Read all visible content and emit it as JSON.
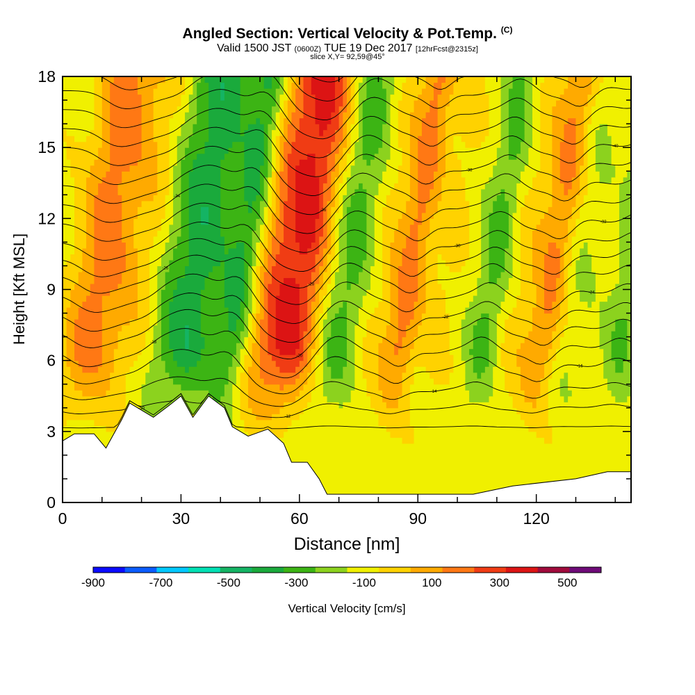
{
  "title": {
    "main": "Angled Section: Vertical Velocity & Pot.Temp.",
    "units": "(C)",
    "valid_prefix": "Valid 1500 JST",
    "valid_z": "(0600Z)",
    "valid_date": "TUE 19 Dec 2017",
    "fcst": "[12hrFcst@2315z]",
    "slice": "slice X,Y= 92,59@45°"
  },
  "chart_data": {
    "type": "heatmap",
    "title": "Angled Section: Vertical Velocity & Pot.Temp.",
    "xlabel": "Distance [nm]",
    "ylabel": "Height [Kft MSL]",
    "xlim": [
      0,
      144
    ],
    "ylim": [
      0,
      18
    ],
    "x_ticks": [
      "0",
      "30",
      "60",
      "90",
      "120"
    ],
    "x_tick_values": [
      0,
      30,
      60,
      90,
      120
    ],
    "y_ticks": [
      "0",
      "3",
      "6",
      "9",
      "12",
      "15",
      "18"
    ],
    "y_tick_values": [
      0,
      3,
      6,
      9,
      12,
      15,
      18
    ],
    "colorbar": {
      "label": "Vertical Velocity [cm/s]",
      "tick_labels": [
        "-900",
        "-700",
        "-500",
        "-300",
        "-100",
        "100",
        "300",
        "500"
      ],
      "tick_values": [
        -900,
        -700,
        -500,
        -300,
        -100,
        100,
        300,
        500
      ],
      "bounds": [
        -900,
        -800,
        -700,
        -600,
        -500,
        -400,
        -300,
        -200,
        -100,
        0,
        100,
        200,
        300,
        400,
        500,
        600
      ],
      "colors": [
        "#0b0bff",
        "#0a5cff",
        "#00c8ff",
        "#00e0b4",
        "#14b464",
        "#1aaa3c",
        "#3cb414",
        "#8cd21e",
        "#f0f000",
        "#ffd200",
        "#ffaa00",
        "#ff7814",
        "#f03c14",
        "#dc1414",
        "#a00a3c",
        "#6e0a78"
      ]
    },
    "velocity_bands": [
      {
        "x": 3,
        "w": 4,
        "v": 250
      },
      {
        "x": 10,
        "w": 4,
        "v": 150
      },
      {
        "x": 17,
        "w": 3,
        "v": 60
      },
      {
        "x": 22,
        "w": 3,
        "v": -60
      },
      {
        "x": 29,
        "w": 5,
        "v": -320
      },
      {
        "x": 40,
        "w": 3,
        "v": -260
      },
      {
        "x": 48,
        "w": 3,
        "v": 150
      },
      {
        "x": 55,
        "w": 5,
        "v": 460
      },
      {
        "x": 67,
        "w": 4,
        "v": -220
      },
      {
        "x": 76,
        "w": 3,
        "v": 70
      },
      {
        "x": 83,
        "w": 3,
        "v": 280
      },
      {
        "x": 92,
        "w": 3,
        "v": 70
      },
      {
        "x": 104,
        "w": 3,
        "v": -190
      },
      {
        "x": 112,
        "w": 3,
        "v": 80
      },
      {
        "x": 119,
        "w": 3,
        "v": 250
      },
      {
        "x": 126,
        "w": 3,
        "v": -60
      },
      {
        "x": 139,
        "w": 3,
        "v": -170
      }
    ],
    "terrain_kft": [
      [
        0,
        2.6
      ],
      [
        3,
        2.9
      ],
      [
        8,
        2.9
      ],
      [
        11,
        2.3
      ],
      [
        13,
        2.9
      ],
      [
        15,
        3.5
      ],
      [
        17,
        4.2
      ],
      [
        20,
        3.9
      ],
      [
        23,
        3.6
      ],
      [
        27,
        4.1
      ],
      [
        30,
        4.5
      ],
      [
        33,
        3.6
      ],
      [
        37,
        4.5
      ],
      [
        41,
        4.0
      ],
      [
        43,
        3.2
      ],
      [
        47,
        2.8
      ],
      [
        52,
        3.1
      ],
      [
        56,
        2.5
      ],
      [
        58,
        1.7
      ],
      [
        62,
        1.7
      ],
      [
        65,
        1.0
      ],
      [
        67,
        0.35
      ],
      [
        104,
        0.35
      ],
      [
        114,
        0.7
      ],
      [
        130,
        1.0
      ],
      [
        138,
        1.3
      ],
      [
        144,
        1.3
      ]
    ],
    "isentrope_labels": [
      "-10",
      "-12",
      "-14",
      "-16",
      "-18",
      "-20",
      "-22",
      "-24",
      "-26",
      "-28",
      "-30",
      "-32",
      "-34",
      "-36",
      "-38",
      "-40"
    ]
  }
}
